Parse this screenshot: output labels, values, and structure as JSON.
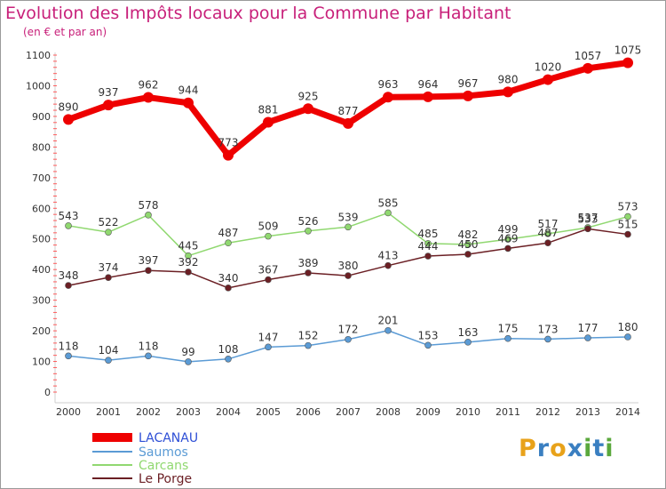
{
  "title": "Evolution des Impôts locaux pour la Commune par Habitant",
  "subtitle": "(en € et par an)",
  "logo": {
    "letters": [
      "P",
      "r",
      "o",
      "x",
      "i",
      "t",
      "i"
    ],
    "colors": [
      "#e8a21a",
      "#3a7fc1",
      "#e8a21a",
      "#3a7fc1",
      "#5aa83c",
      "#3a7fc1",
      "#5aa83c"
    ]
  },
  "chart_data": {
    "type": "line",
    "x": [
      "2000",
      "2001",
      "2002",
      "2003",
      "2004",
      "2005",
      "2006",
      "2007",
      "2008",
      "2009",
      "2010",
      "2011",
      "2012",
      "2013",
      "2014"
    ],
    "ylim": [
      0,
      1100
    ],
    "yticks": [
      0,
      100,
      200,
      300,
      400,
      500,
      600,
      700,
      800,
      900,
      1000,
      1100
    ],
    "grid": false,
    "legend_position": "bottom-left",
    "series": [
      {
        "name": "LACANAU",
        "color": "#ee0000",
        "values": [
          890,
          937,
          962,
          944,
          773,
          881,
          925,
          877,
          963,
          964,
          967,
          980,
          1020,
          1057,
          1075
        ]
      },
      {
        "name": "Saumos",
        "color": "#5b9bd5",
        "values": [
          118,
          104,
          118,
          99,
          108,
          147,
          152,
          172,
          201,
          153,
          163,
          175,
          173,
          177,
          180
        ]
      },
      {
        "name": "Carcans",
        "color": "#90d870",
        "values": [
          543,
          522,
          578,
          445,
          487,
          509,
          526,
          539,
          585,
          485,
          482,
          499,
          517,
          537,
          573
        ]
      },
      {
        "name": "Le Porge",
        "color": "#6b1f24",
        "values": [
          348,
          374,
          397,
          392,
          340,
          367,
          389,
          380,
          413,
          444,
          450,
          469,
          487,
          533,
          515
        ]
      }
    ]
  }
}
